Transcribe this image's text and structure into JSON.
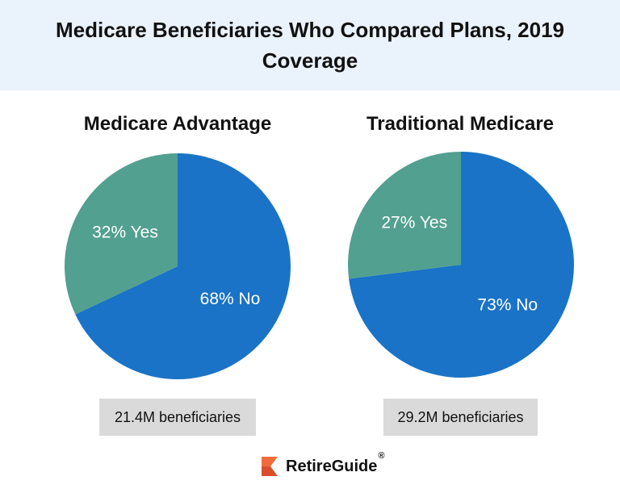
{
  "title": "Medicare Beneficiaries Who Compared Plans, 2019 Coverage",
  "brand": {
    "name": "RetireGuide",
    "mark": "®"
  },
  "colors": {
    "header_bg": "#eaf2fb",
    "no": "#1a73c6",
    "yes": "#52a08f",
    "footnote_bg": "#dadada",
    "logo_orange": "#f26b3a"
  },
  "chart_data": [
    {
      "type": "pie",
      "title": "Medicare Advantage",
      "slices": [
        {
          "name": "No",
          "value": 68,
          "label": "68% No",
          "color": "#1a73c6"
        },
        {
          "name": "Yes",
          "value": 32,
          "label": "32% Yes",
          "color": "#52a08f"
        }
      ],
      "footnote": "21.4M beneficiaries"
    },
    {
      "type": "pie",
      "title": "Traditional Medicare",
      "slices": [
        {
          "name": "No",
          "value": 73,
          "label": "73% No",
          "color": "#1a73c6"
        },
        {
          "name": "Yes",
          "value": 27,
          "label": "27% Yes",
          "color": "#52a08f"
        }
      ],
      "footnote": "29.2M beneficiaries"
    }
  ]
}
